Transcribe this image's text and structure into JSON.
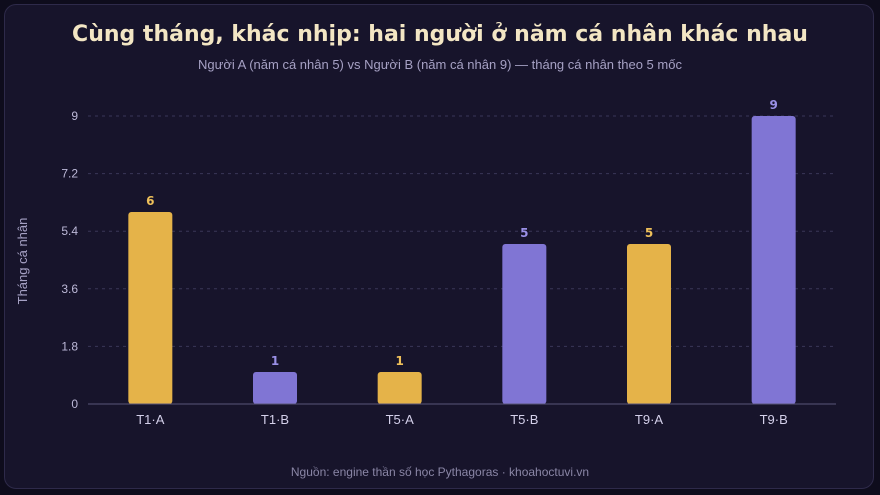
{
  "chart_data": {
    "type": "bar",
    "title": "Cùng tháng, khác nhịp: hai người ở năm cá nhân khác nhau",
    "subtitle": "Người A (năm cá nhân 5) vs Người B (năm cá nhân 9) — tháng cá nhân theo 5 mốc",
    "source": "Nguồn: engine thần số học Pythagoras · khoahoctuvi.vn",
    "xlabel": "",
    "ylabel": "Tháng cá nhân",
    "ylim": [
      0,
      9
    ],
    "yticks": [
      "0",
      "1.8",
      "3.6",
      "5.4",
      "7.2",
      "9"
    ],
    "ytick_values": [
      0,
      1.8,
      3.6,
      5.4,
      7.2,
      9
    ],
    "grid": true,
    "categories": [
      "T1·A",
      "T1·B",
      "T5·A",
      "T5·B",
      "T9·A",
      "T9·B"
    ],
    "values": [
      6,
      1,
      1,
      5,
      5,
      9
    ],
    "bar_colors": [
      "#e5b349",
      "#8075d4",
      "#e5b349",
      "#8075d4",
      "#e5b349",
      "#8075d4"
    ],
    "label_colors": [
      "#eec05a",
      "#9a90e6",
      "#eec05a",
      "#9a90e6",
      "#eec05a",
      "#9a90e6"
    ]
  }
}
